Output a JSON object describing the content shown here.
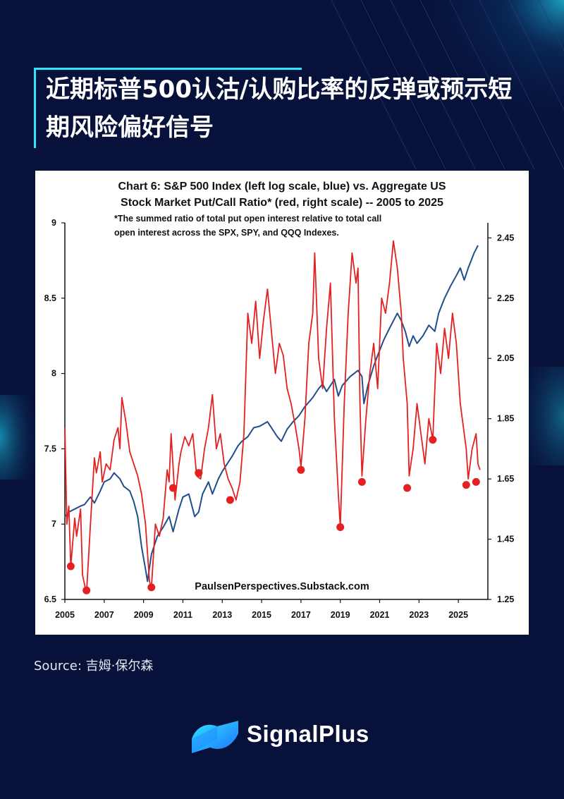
{
  "page": {
    "title": "近期标普500认沽/认购比率的反弹或预示短期风险偏好信号",
    "source": "Source: 吉姆·保尔森",
    "brand": "SignalPlus",
    "colors": {
      "background": "#07113a",
      "accent": "#2fe6ff",
      "logo_blue": "#1f8fff"
    }
  },
  "chart_data": {
    "type": "line",
    "title_line1": "Chart 6: S&P 500 Index (left log scale, blue) vs. Aggregate US",
    "title_line2": "Stock Market Put/Call Ratio* (red, right scale) -- 2005 to 2025",
    "note_line1": "*The summed ratio of total put open interest relative to total call",
    "note_line2": "open interest across the SPX, SPY, and QQQ Indexes.",
    "watermark": "PaulsenPerspectives.Substack.com",
    "x_ticks": [
      "2005",
      "2007",
      "2009",
      "2011",
      "2013",
      "2015",
      "2017",
      "2019",
      "2021",
      "2023",
      "2025"
    ],
    "xlim": [
      2005,
      2026.5
    ],
    "left_axis": {
      "ticks": [
        "6.5",
        "7",
        "7.5",
        "8",
        "8.5",
        "9"
      ],
      "ylim": [
        6.5,
        9
      ]
    },
    "right_axis": {
      "ticks": [
        "1.25",
        "1.45",
        "1.65",
        "1.85",
        "2.05",
        "2.25",
        "2.45"
      ],
      "ylim": [
        1.25,
        2.5
      ]
    },
    "series": [
      {
        "color": "#1f4e8c",
        "axis": "left",
        "points": [
          [
            2005.0,
            7.05
          ],
          [
            2005.2,
            7.08
          ],
          [
            2005.5,
            7.1
          ],
          [
            2005.8,
            7.12
          ],
          [
            2006.0,
            7.13
          ],
          [
            2006.3,
            7.18
          ],
          [
            2006.5,
            7.14
          ],
          [
            2006.8,
            7.22
          ],
          [
            2007.0,
            7.28
          ],
          [
            2007.3,
            7.3
          ],
          [
            2007.5,
            7.34
          ],
          [
            2007.8,
            7.3
          ],
          [
            2008.0,
            7.25
          ],
          [
            2008.3,
            7.22
          ],
          [
            2008.5,
            7.15
          ],
          [
            2008.7,
            7.05
          ],
          [
            2008.9,
            6.85
          ],
          [
            2009.1,
            6.7
          ],
          [
            2009.2,
            6.62
          ],
          [
            2009.4,
            6.8
          ],
          [
            2009.7,
            6.92
          ],
          [
            2010.0,
            6.98
          ],
          [
            2010.3,
            7.05
          ],
          [
            2010.5,
            6.95
          ],
          [
            2010.8,
            7.1
          ],
          [
            2011.0,
            7.18
          ],
          [
            2011.3,
            7.2
          ],
          [
            2011.6,
            7.05
          ],
          [
            2011.8,
            7.08
          ],
          [
            2012.0,
            7.2
          ],
          [
            2012.3,
            7.28
          ],
          [
            2012.5,
            7.2
          ],
          [
            2012.8,
            7.3
          ],
          [
            2013.0,
            7.35
          ],
          [
            2013.5,
            7.45
          ],
          [
            2013.8,
            7.52
          ],
          [
            2014.0,
            7.55
          ],
          [
            2014.3,
            7.58
          ],
          [
            2014.6,
            7.64
          ],
          [
            2014.9,
            7.65
          ],
          [
            2015.3,
            7.68
          ],
          [
            2015.6,
            7.62
          ],
          [
            2015.8,
            7.58
          ],
          [
            2016.0,
            7.55
          ],
          [
            2016.3,
            7.63
          ],
          [
            2016.6,
            7.68
          ],
          [
            2016.9,
            7.72
          ],
          [
            2017.2,
            7.78
          ],
          [
            2017.6,
            7.84
          ],
          [
            2017.9,
            7.9
          ],
          [
            2018.1,
            7.93
          ],
          [
            2018.3,
            7.88
          ],
          [
            2018.7,
            7.96
          ],
          [
            2018.9,
            7.85
          ],
          [
            2019.1,
            7.92
          ],
          [
            2019.5,
            7.98
          ],
          [
            2019.9,
            8.02
          ],
          [
            2020.1,
            7.98
          ],
          [
            2020.2,
            7.8
          ],
          [
            2020.4,
            7.92
          ],
          [
            2020.7,
            8.05
          ],
          [
            2020.9,
            8.12
          ],
          [
            2021.2,
            8.22
          ],
          [
            2021.5,
            8.3
          ],
          [
            2021.9,
            8.4
          ],
          [
            2022.1,
            8.35
          ],
          [
            2022.3,
            8.28
          ],
          [
            2022.5,
            8.18
          ],
          [
            2022.7,
            8.25
          ],
          [
            2022.9,
            8.2
          ],
          [
            2023.2,
            8.25
          ],
          [
            2023.5,
            8.32
          ],
          [
            2023.8,
            8.28
          ],
          [
            2024.0,
            8.4
          ],
          [
            2024.3,
            8.5
          ],
          [
            2024.6,
            8.58
          ],
          [
            2024.9,
            8.65
          ],
          [
            2025.1,
            8.7
          ],
          [
            2025.3,
            8.62
          ],
          [
            2025.5,
            8.7
          ],
          [
            2025.8,
            8.8
          ],
          [
            2026.0,
            8.85
          ]
        ]
      },
      {
        "color": "#e32121",
        "axis": "right",
        "points": [
          [
            2005.0,
            1.82
          ],
          [
            2005.1,
            1.5
          ],
          [
            2005.2,
            1.56
          ],
          [
            2005.3,
            1.36
          ],
          [
            2005.5,
            1.52
          ],
          [
            2005.6,
            1.46
          ],
          [
            2005.8,
            1.55
          ],
          [
            2005.9,
            1.33
          ],
          [
            2006.1,
            1.27
          ],
          [
            2006.3,
            1.5
          ],
          [
            2006.5,
            1.72
          ],
          [
            2006.6,
            1.67
          ],
          [
            2006.8,
            1.74
          ],
          [
            2006.9,
            1.64
          ],
          [
            2007.1,
            1.7
          ],
          [
            2007.3,
            1.68
          ],
          [
            2007.5,
            1.78
          ],
          [
            2007.7,
            1.82
          ],
          [
            2007.8,
            1.75
          ],
          [
            2007.9,
            1.92
          ],
          [
            2008.1,
            1.84
          ],
          [
            2008.3,
            1.74
          ],
          [
            2008.5,
            1.7
          ],
          [
            2008.7,
            1.66
          ],
          [
            2008.9,
            1.6
          ],
          [
            2009.1,
            1.5
          ],
          [
            2009.3,
            1.31
          ],
          [
            2009.4,
            1.29
          ],
          [
            2009.6,
            1.5
          ],
          [
            2009.8,
            1.46
          ],
          [
            2010.0,
            1.52
          ],
          [
            2010.2,
            1.68
          ],
          [
            2010.3,
            1.64
          ],
          [
            2010.4,
            1.8
          ],
          [
            2010.6,
            1.58
          ],
          [
            2010.8,
            1.7
          ],
          [
            2010.9,
            1.74
          ],
          [
            2011.1,
            1.79
          ],
          [
            2011.3,
            1.76
          ],
          [
            2011.5,
            1.8
          ],
          [
            2011.7,
            1.66
          ],
          [
            2011.9,
            1.65
          ],
          [
            2012.1,
            1.75
          ],
          [
            2012.3,
            1.82
          ],
          [
            2012.5,
            1.93
          ],
          [
            2012.7,
            1.75
          ],
          [
            2012.9,
            1.8
          ],
          [
            2013.1,
            1.7
          ],
          [
            2013.3,
            1.65
          ],
          [
            2013.5,
            1.62
          ],
          [
            2013.7,
            1.58
          ],
          [
            2013.9,
            1.64
          ],
          [
            2014.1,
            1.8
          ],
          [
            2014.3,
            2.2
          ],
          [
            2014.5,
            2.1
          ],
          [
            2014.7,
            2.24
          ],
          [
            2014.9,
            2.05
          ],
          [
            2015.1,
            2.18
          ],
          [
            2015.3,
            2.28
          ],
          [
            2015.5,
            2.14
          ],
          [
            2015.7,
            2.0
          ],
          [
            2015.9,
            2.1
          ],
          [
            2016.1,
            2.06
          ],
          [
            2016.3,
            1.95
          ],
          [
            2016.5,
            1.9
          ],
          [
            2016.7,
            1.83
          ],
          [
            2016.9,
            1.75
          ],
          [
            2017.0,
            1.69
          ],
          [
            2017.2,
            1.85
          ],
          [
            2017.4,
            2.1
          ],
          [
            2017.6,
            2.2
          ],
          [
            2017.7,
            2.4
          ],
          [
            2017.9,
            2.05
          ],
          [
            2018.1,
            1.95
          ],
          [
            2018.3,
            2.15
          ],
          [
            2018.5,
            2.3
          ],
          [
            2018.7,
            1.85
          ],
          [
            2018.9,
            1.6
          ],
          [
            2019.0,
            1.49
          ],
          [
            2019.2,
            1.9
          ],
          [
            2019.4,
            2.2
          ],
          [
            2019.6,
            2.4
          ],
          [
            2019.8,
            2.3
          ],
          [
            2019.9,
            2.35
          ],
          [
            2020.0,
            1.9
          ],
          [
            2020.1,
            1.66
          ],
          [
            2020.3,
            1.85
          ],
          [
            2020.5,
            2.0
          ],
          [
            2020.7,
            2.1
          ],
          [
            2020.9,
            1.95
          ],
          [
            2021.1,
            2.25
          ],
          [
            2021.3,
            2.2
          ],
          [
            2021.5,
            2.3
          ],
          [
            2021.7,
            2.44
          ],
          [
            2021.9,
            2.35
          ],
          [
            2022.1,
            2.2
          ],
          [
            2022.2,
            2.05
          ],
          [
            2022.4,
            1.9
          ],
          [
            2022.5,
            1.66
          ],
          [
            2022.7,
            1.75
          ],
          [
            2022.9,
            1.9
          ],
          [
            2023.1,
            1.8
          ],
          [
            2023.3,
            1.7
          ],
          [
            2023.5,
            1.85
          ],
          [
            2023.7,
            1.78
          ],
          [
            2023.9,
            2.1
          ],
          [
            2024.1,
            2.0
          ],
          [
            2024.3,
            2.15
          ],
          [
            2024.5,
            2.05
          ],
          [
            2024.7,
            2.2
          ],
          [
            2024.9,
            2.1
          ],
          [
            2025.1,
            1.9
          ],
          [
            2025.2,
            1.85
          ],
          [
            2025.4,
            1.75
          ],
          [
            2025.5,
            1.65
          ],
          [
            2025.7,
            1.75
          ],
          [
            2025.9,
            1.8
          ],
          [
            2026.0,
            1.7
          ],
          [
            2026.1,
            1.68
          ]
        ]
      }
    ],
    "markers": {
      "color": "#e32121",
      "points": [
        [
          2005.3,
          1.36
        ],
        [
          2006.1,
          1.28
        ],
        [
          2009.4,
          1.29
        ],
        [
          2010.5,
          1.62
        ],
        [
          2011.8,
          1.67
        ],
        [
          2013.4,
          1.58
        ],
        [
          2017.0,
          1.68
        ],
        [
          2019.0,
          1.49
        ],
        [
          2020.1,
          1.64
        ],
        [
          2022.4,
          1.62
        ],
        [
          2023.7,
          1.78
        ],
        [
          2025.4,
          1.63
        ],
        [
          2025.9,
          1.64
        ]
      ]
    }
  }
}
